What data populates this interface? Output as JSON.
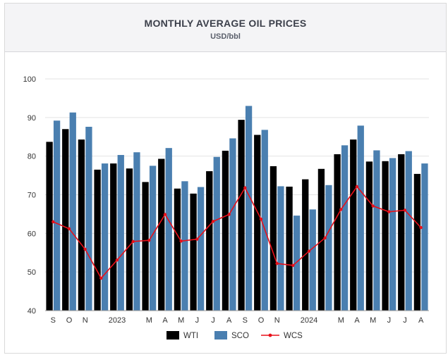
{
  "header": {
    "title": "MONTHLY AVERAGE OIL PRICES",
    "subtitle": "USD/bbl"
  },
  "colors": {
    "wti": "#000000",
    "sco": "#4a7fb0",
    "wcs": "#e8101a",
    "grid": "#e3e3e3",
    "axis": "#999999"
  },
  "chart_data": {
    "type": "bar",
    "title": "MONTHLY AVERAGE OIL PRICES",
    "subtitle": "USD/bbl",
    "xlabel": "",
    "ylabel": "",
    "ylim": [
      40,
      100
    ],
    "yticks": [
      40,
      50,
      60,
      70,
      80,
      90,
      100
    ],
    "grid": true,
    "legend_position": "bottom",
    "categories": [
      "S",
      "O",
      "N",
      "",
      "2023",
      "",
      "M",
      "A",
      "M",
      "J",
      "J",
      "A",
      "S",
      "O",
      "N",
      "",
      "2024",
      "",
      "M",
      "A",
      "M",
      "J",
      "J",
      "A"
    ],
    "series": [
      {
        "name": "WTI",
        "type": "bar",
        "values": [
          83.7,
          87.0,
          84.3,
          76.5,
          78.1,
          76.8,
          73.3,
          79.3,
          71.6,
          70.3,
          76.1,
          81.4,
          89.4,
          85.5,
          77.4,
          72.1,
          74.0,
          76.7,
          80.5,
          84.3,
          78.6,
          78.7,
          80.5,
          75.4
        ]
      },
      {
        "name": "SCO",
        "type": "bar",
        "values": [
          89.2,
          91.3,
          87.6,
          78.1,
          80.3,
          81.0,
          77.5,
          82.1,
          73.5,
          72.0,
          79.8,
          84.6,
          93.0,
          86.8,
          72.2,
          64.6,
          66.2,
          72.5,
          82.8,
          87.9,
          81.5,
          79.5,
          81.3,
          78.1
        ]
      },
      {
        "name": "WCS",
        "type": "line",
        "values": [
          63.0,
          61.2,
          55.9,
          48.4,
          53.1,
          57.9,
          58.2,
          64.9,
          58.0,
          58.5,
          63.1,
          64.9,
          71.8,
          63.7,
          52.2,
          51.7,
          55.4,
          58.8,
          66.2,
          72.1,
          67.1,
          65.6,
          66.0,
          61.5
        ]
      }
    ]
  }
}
